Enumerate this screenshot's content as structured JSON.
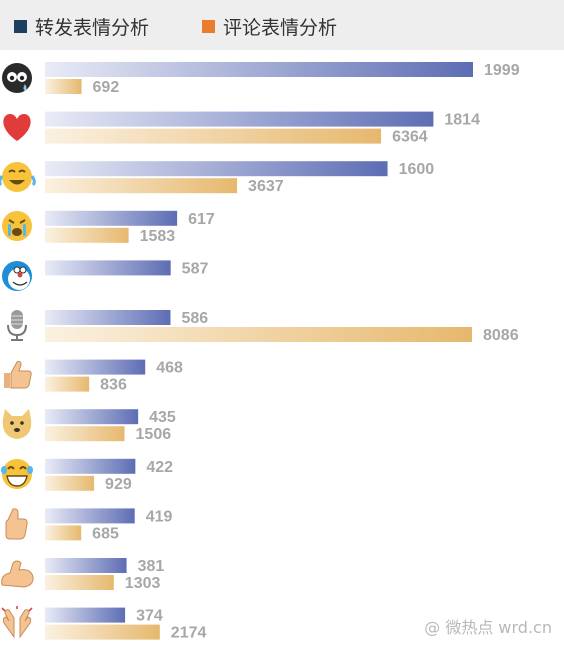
{
  "legend": [
    {
      "label": "转发表情分析",
      "color": "#1f3f5f"
    },
    {
      "label": "评论表情分析",
      "color": "#ea7d2c"
    }
  ],
  "watermark": "@ 微热点 wrd.cn",
  "chart_data": {
    "type": "bar",
    "orientation": "horizontal",
    "categories": [
      "eyes-emoji",
      "heart-emoji",
      "laugh-cry-emoji",
      "crying-emoji",
      "doraemon-emoji",
      "microphone-emoji",
      "thumbs-up-emoji",
      "doge-emoji",
      "grin-tears-emoji",
      "thumb-up-small-emoji",
      "flex-arm-emoji",
      "clap-emoji"
    ],
    "series": [
      {
        "name": "转发表情分析",
        "values": [
          1999,
          1814,
          1600,
          617,
          587,
          586,
          468,
          435,
          422,
          419,
          381,
          374
        ]
      },
      {
        "name": "评论表情分析",
        "values": [
          692,
          6364,
          3637,
          1583,
          null,
          8086,
          836,
          1506,
          929,
          685,
          1303,
          2174
        ]
      }
    ],
    "colors": {
      "repost_start": "#e9ebf6",
      "repost_end": "#5d6db4",
      "comment_start": "#fbf1e1",
      "comment_end": "#e6b86d"
    },
    "legend_position": "top-left",
    "grid": false
  }
}
